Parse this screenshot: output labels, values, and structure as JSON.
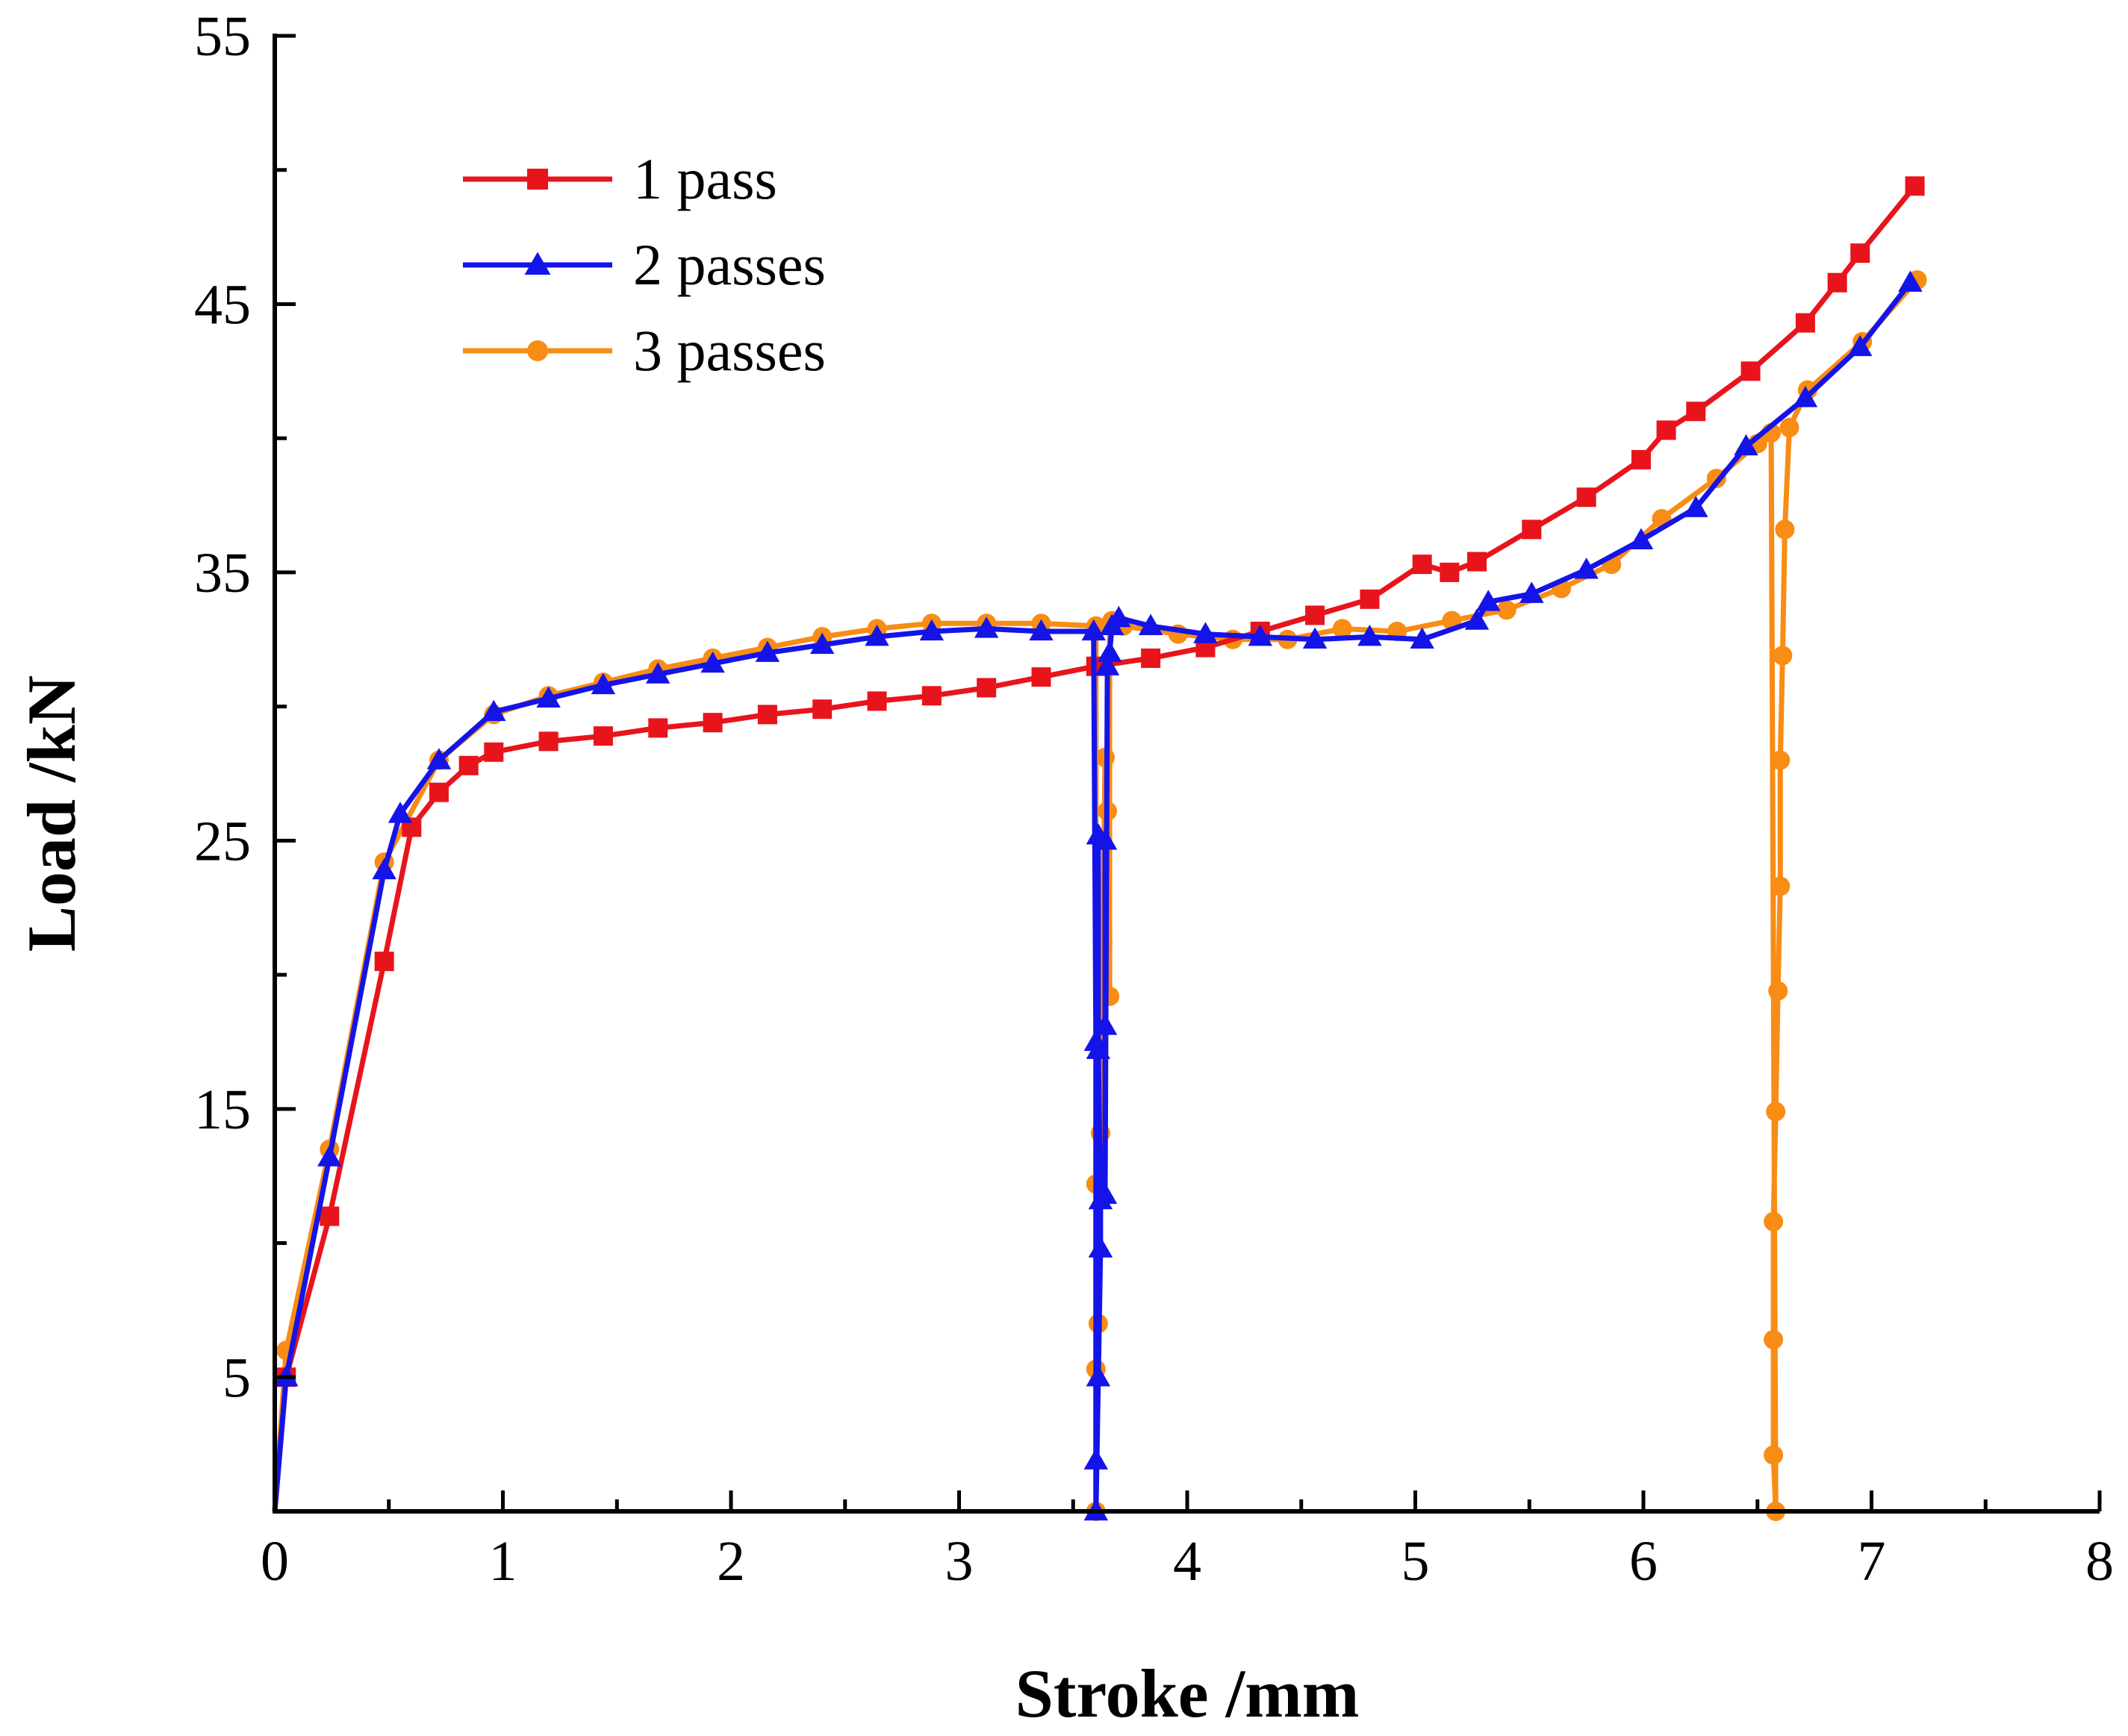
{
  "chart_data": {
    "type": "line",
    "title": "",
    "xlabel": "Stroke /mm",
    "ylabel": "Load /kN",
    "xlim": [
      0,
      8
    ],
    "ylim": [
      0,
      55
    ],
    "xticks": [
      0,
      1,
      2,
      3,
      4,
      5,
      6,
      7,
      8
    ],
    "yticks": [
      5,
      15,
      25,
      35,
      45,
      55
    ],
    "grid": false,
    "legend_position": "top-left",
    "series": [
      {
        "name": "1 pass",
        "color": "#e8141c",
        "marker": "square",
        "x": [
          0,
          0.05,
          0.24,
          0.48,
          0.6,
          0.72,
          0.85,
          0.96,
          1.2,
          1.44,
          1.68,
          1.92,
          2.16,
          2.4,
          2.64,
          2.88,
          3.12,
          3.36,
          3.6,
          3.84,
          4.08,
          4.32,
          4.56,
          4.8,
          5.03,
          5.15,
          5.27,
          5.51,
          5.75,
          5.99,
          6.1,
          6.23,
          6.47,
          6.71,
          6.85,
          6.95,
          7.19
        ],
        "y": [
          0,
          5,
          11.0,
          20.5,
          25.5,
          26.8,
          27.8,
          28.3,
          28.7,
          28.9,
          29.2,
          29.4,
          29.7,
          29.9,
          30.2,
          30.4,
          30.7,
          31.1,
          31.5,
          31.8,
          32.2,
          32.8,
          33.4,
          34.0,
          35.3,
          35.0,
          35.4,
          36.6,
          37.8,
          39.2,
          40.3,
          41.0,
          42.5,
          44.3,
          45.8,
          46.9,
          49.4
        ]
      },
      {
        "name": "2 passes",
        "color": "#1414e8",
        "marker": "triangle",
        "x": [
          0,
          0.05,
          0.24,
          0.48,
          0.55,
          0.72,
          0.96,
          1.2,
          1.44,
          1.68,
          1.92,
          2.16,
          2.4,
          2.64,
          2.88,
          3.12,
          3.36,
          3.59,
          3.6,
          3.6,
          3.6,
          3.61,
          3.62,
          3.62,
          3.61,
          3.61,
          3.64,
          3.64,
          3.64,
          3.65,
          3.66,
          3.67,
          3.7,
          3.84,
          4.08,
          4.32,
          4.56,
          4.8,
          5.03,
          5.27,
          5.32,
          5.51,
          5.75,
          5.99,
          6.23,
          6.45,
          6.71,
          6.95,
          7.17
        ],
        "y": [
          0,
          5,
          13.2,
          23.9,
          26.0,
          28.0,
          29.8,
          30.3,
          30.8,
          31.2,
          31.6,
          32.0,
          32.3,
          32.6,
          32.8,
          32.9,
          32.8,
          32.8,
          17.5,
          1.9,
          0,
          5.0,
          9.8,
          11.6,
          17.2,
          25.2,
          25.0,
          18.1,
          11.8,
          31.5,
          32.0,
          33.0,
          33.3,
          33.0,
          32.7,
          32.6,
          32.5,
          32.6,
          32.5,
          33.2,
          33.9,
          34.2,
          35.1,
          36.2,
          37.4,
          39.7,
          41.5,
          43.4,
          45.8
        ]
      },
      {
        "name": "3 passes",
        "color": "#f88c14",
        "marker": "circle",
        "x": [
          0,
          0.05,
          0.24,
          0.48,
          0.72,
          0.96,
          1.2,
          1.44,
          1.68,
          1.92,
          2.16,
          2.4,
          2.64,
          2.88,
          3.12,
          3.36,
          3.6,
          3.6,
          3.6,
          3.6,
          3.61,
          3.62,
          3.63,
          3.64,
          3.65,
          3.66,
          3.66,
          3.67,
          3.72,
          3.96,
          4.2,
          4.44,
          4.68,
          4.92,
          5.16,
          5.4,
          5.64,
          5.86,
          6.08,
          6.32,
          6.5,
          6.56,
          6.58,
          6.57,
          6.57,
          6.57,
          6.58,
          6.59,
          6.6,
          6.6,
          6.61,
          6.62,
          6.64,
          6.72,
          6.96,
          7.2
        ],
        "y": [
          0,
          6,
          13.5,
          24.2,
          28.0,
          29.7,
          30.4,
          30.9,
          31.4,
          31.8,
          32.2,
          32.6,
          32.9,
          33.1,
          33.1,
          33.1,
          33.0,
          0,
          5.3,
          12.2,
          7.0,
          14.1,
          21.2,
          28.1,
          26.1,
          19.2,
          33.0,
          33.2,
          33.0,
          32.7,
          32.5,
          32.5,
          32.9,
          32.8,
          33.2,
          33.6,
          34.4,
          35.3,
          37.0,
          38.5,
          39.8,
          40.2,
          0,
          2.1,
          6.4,
          10.8,
          14.9,
          19.4,
          23.3,
          28.0,
          31.9,
          36.6,
          40.4,
          41.8,
          43.6,
          45.9
        ]
      }
    ]
  }
}
